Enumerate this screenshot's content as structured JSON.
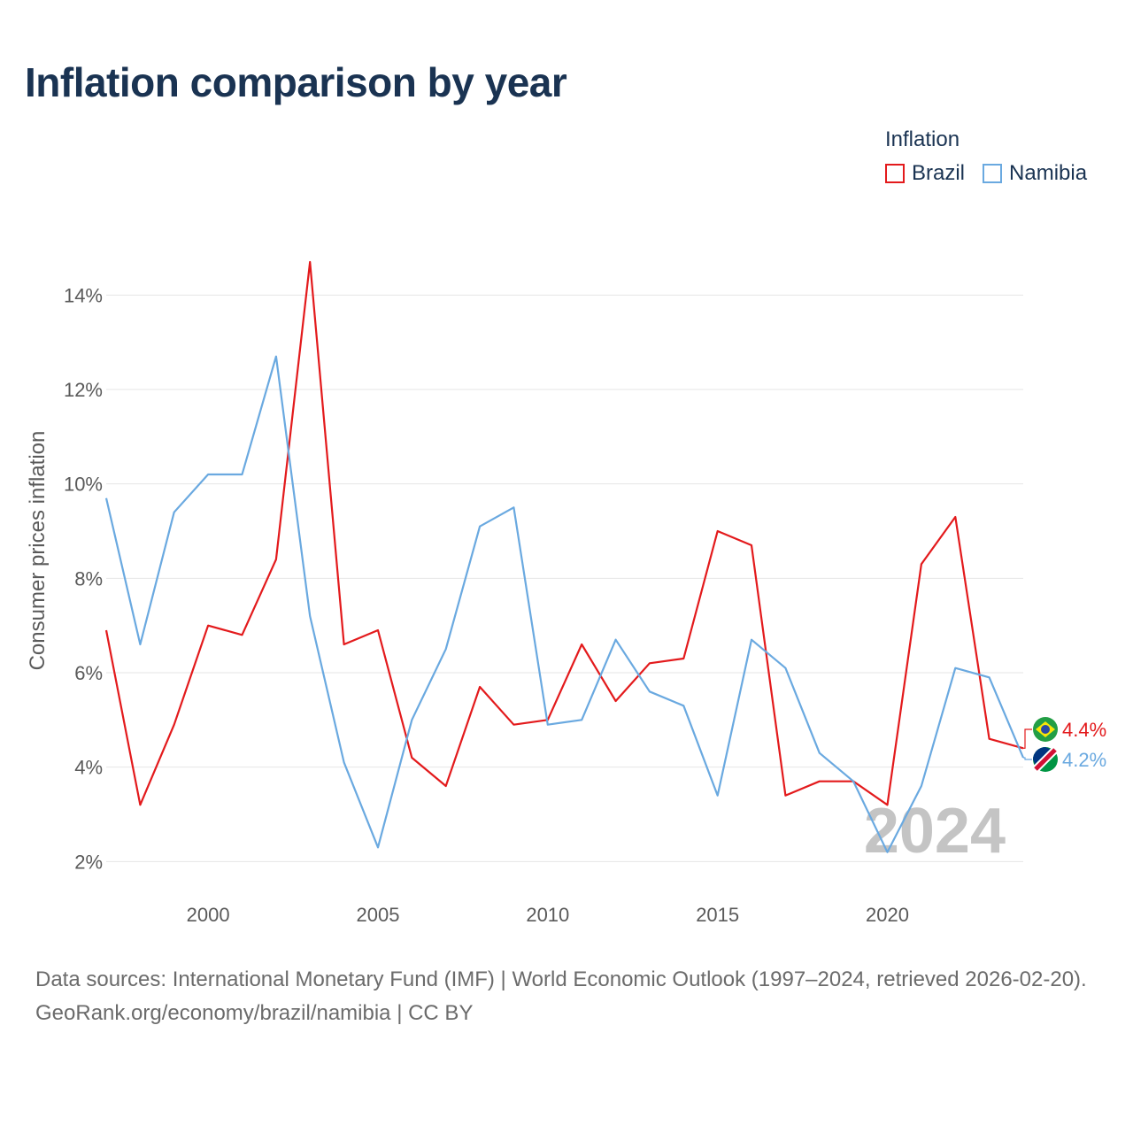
{
  "title": "Inflation comparison by year",
  "legend": {
    "title": "Inflation",
    "items": [
      {
        "label": "Brazil",
        "color": "#e31a1c"
      },
      {
        "label": "Namibia",
        "color": "#6aa9e0"
      }
    ]
  },
  "footer": {
    "sources": "Data sources: International Monetary Fund (IMF) | World Economic Outlook (1997–2024, retrieved 2026-02-20).",
    "credit": "GeoRank.org/economy/brazil/namibia | CC BY"
  },
  "chart_data": {
    "type": "line",
    "title": "Inflation comparison by year",
    "xlabel": "",
    "ylabel": "Consumer prices inflation",
    "x": [
      1997,
      1998,
      1999,
      2000,
      2001,
      2002,
      2003,
      2004,
      2005,
      2006,
      2007,
      2008,
      2009,
      2010,
      2011,
      2012,
      2013,
      2014,
      2015,
      2016,
      2017,
      2018,
      2019,
      2020,
      2021,
      2022,
      2023,
      2024
    ],
    "xlim": [
      1997,
      2024
    ],
    "ylim": [
      1.5,
      15
    ],
    "xticks": [
      2000,
      2005,
      2010,
      2015,
      2020
    ],
    "yticks": [
      2,
      4,
      6,
      8,
      10,
      12,
      14
    ],
    "ytick_labels": [
      "2%",
      "4%",
      "6%",
      "8%",
      "10%",
      "12%",
      "14%"
    ],
    "grid": true,
    "watermark_year": "2024",
    "series": [
      {
        "name": "Brazil",
        "color": "#e31a1c",
        "end_label": "4.4%",
        "values": [
          6.9,
          3.2,
          4.9,
          7.0,
          6.8,
          8.4,
          14.7,
          6.6,
          6.9,
          4.2,
          3.6,
          5.7,
          4.9,
          5.0,
          6.6,
          5.4,
          6.2,
          6.3,
          9.0,
          8.7,
          3.4,
          3.7,
          3.7,
          3.2,
          8.3,
          9.3,
          4.6,
          4.4
        ]
      },
      {
        "name": "Namibia",
        "color": "#6aa9e0",
        "end_label": "4.2%",
        "values": [
          9.7,
          6.6,
          9.4,
          10.2,
          10.2,
          12.7,
          7.2,
          4.1,
          2.3,
          5.0,
          6.5,
          9.1,
          9.5,
          4.9,
          5.0,
          6.7,
          5.6,
          5.3,
          3.4,
          6.7,
          6.1,
          4.3,
          3.7,
          2.2,
          3.6,
          6.1,
          5.9,
          4.2
        ]
      }
    ]
  }
}
